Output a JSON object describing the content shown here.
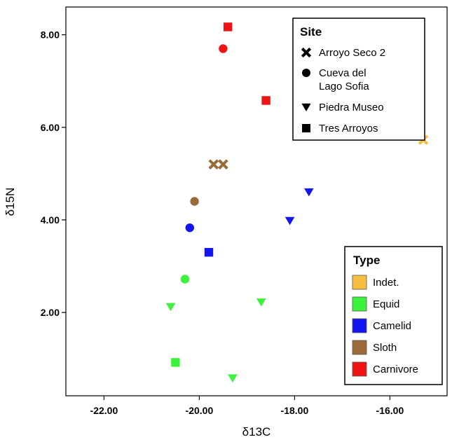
{
  "chart_data": {
    "type": "scatter",
    "xlabel": "δ13C",
    "ylabel": "δ15N",
    "xlim": [
      -22.8,
      -14.8
    ],
    "ylim": [
      0.2,
      8.6
    ],
    "x_ticks": [
      -22.0,
      -20.0,
      -18.0,
      -16.0
    ],
    "y_ticks": [
      2.0,
      4.0,
      6.0,
      8.0
    ],
    "x_tick_labels": [
      "-22.00",
      "-20.00",
      "-18.00",
      "-16.00"
    ],
    "y_tick_labels": [
      "2.00",
      "4.00",
      "6.00",
      "8.00"
    ],
    "grid": false,
    "legends": {
      "site": {
        "title": "Site",
        "placement": "top-right",
        "entries": [
          {
            "label": "Arroyo Seco 2",
            "marker": "x-icon"
          },
          {
            "label": "Cueva del\nLago Sofia",
            "marker": "circle-icon"
          },
          {
            "label": "Piedra Museo",
            "marker": "triangle-down-icon"
          },
          {
            "label": "Tres Arroyos",
            "marker": "square-icon"
          }
        ]
      },
      "type": {
        "title": "Type",
        "placement": "bottom-right",
        "entries": [
          {
            "label": "Indet.",
            "color": "#f7bf3f"
          },
          {
            "label": "Equid",
            "color": "#3df23d"
          },
          {
            "label": "Camelid",
            "color": "#1414ee"
          },
          {
            "label": "Sloth",
            "color": "#9a6a3a"
          },
          {
            "label": "Carnivore",
            "color": "#ee1414"
          }
        ]
      }
    },
    "points": [
      {
        "x": -19.4,
        "y": 8.17,
        "site": "Tres Arroyos",
        "type": "Carnivore"
      },
      {
        "x": -19.5,
        "y": 7.7,
        "site": "Cueva del Lago Sofia",
        "type": "Carnivore"
      },
      {
        "x": -18.6,
        "y": 6.58,
        "site": "Tres Arroyos",
        "type": "Carnivore"
      },
      {
        "x": -15.3,
        "y": 5.73,
        "site": "Arroyo Seco 2",
        "type": "Indet."
      },
      {
        "x": -19.7,
        "y": 5.2,
        "site": "Arroyo Seco 2",
        "type": "Sloth"
      },
      {
        "x": -19.5,
        "y": 5.2,
        "site": "Arroyo Seco 2",
        "type": "Sloth"
      },
      {
        "x": -20.1,
        "y": 4.4,
        "site": "Cueva del Lago Sofia",
        "type": "Sloth"
      },
      {
        "x": -17.7,
        "y": 4.6,
        "site": "Piedra Museo",
        "type": "Camelid"
      },
      {
        "x": -18.1,
        "y": 3.98,
        "site": "Piedra Museo",
        "type": "Camelid"
      },
      {
        "x": -20.2,
        "y": 3.83,
        "site": "Cueva del Lago Sofia",
        "type": "Camelid"
      },
      {
        "x": -19.8,
        "y": 3.3,
        "site": "Tres Arroyos",
        "type": "Camelid"
      },
      {
        "x": -20.3,
        "y": 2.72,
        "site": "Cueva del Lago Sofia",
        "type": "Equid"
      },
      {
        "x": -20.6,
        "y": 2.12,
        "site": "Piedra Museo",
        "type": "Equid"
      },
      {
        "x": -18.7,
        "y": 2.22,
        "site": "Piedra Museo",
        "type": "Equid"
      },
      {
        "x": -20.5,
        "y": 0.92,
        "site": "Tres Arroyos",
        "type": "Equid"
      },
      {
        "x": -19.3,
        "y": 0.58,
        "site": "Piedra Museo",
        "type": "Equid"
      }
    ]
  }
}
